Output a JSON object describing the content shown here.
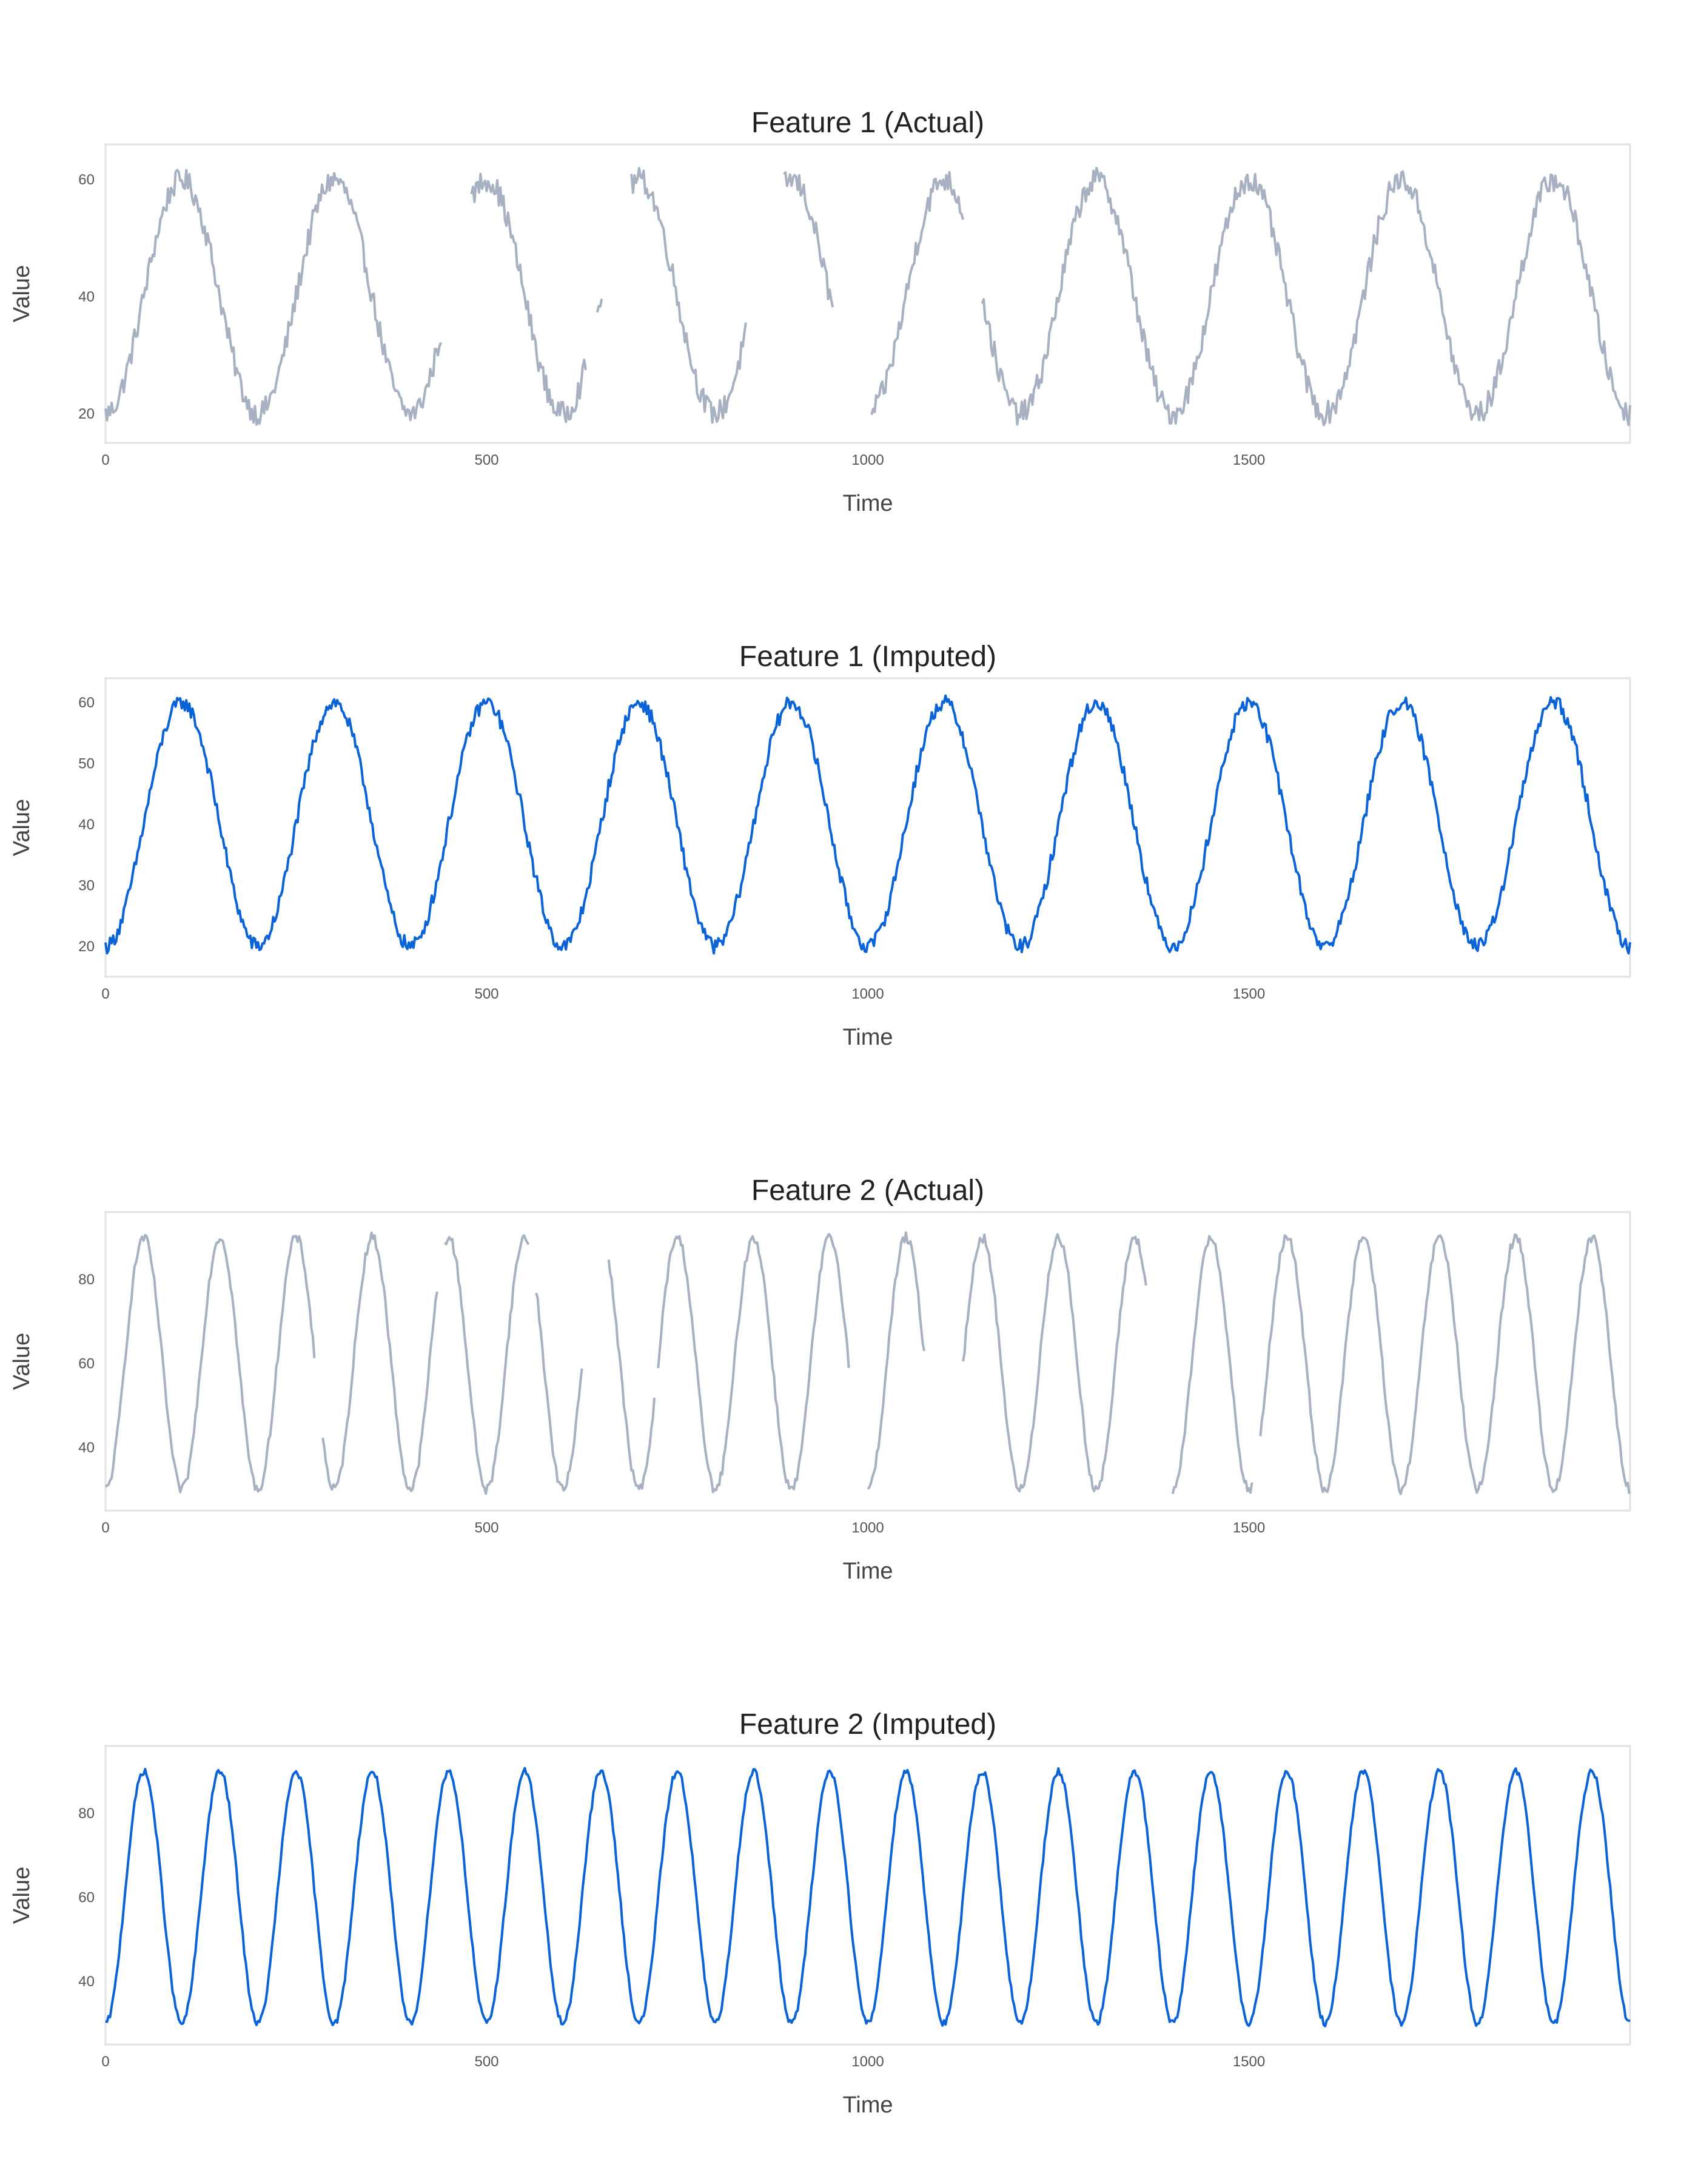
{
  "colors": {
    "actual": "#a7b1c2",
    "imputed": "#0b63d8",
    "frame": "#e2e2e2",
    "text": "#222222"
  },
  "chart_data": [
    {
      "type": "line",
      "title": "Feature 1 (Actual)",
      "xlabel": "Time",
      "ylabel": "Value",
      "xlim": [
        0,
        2000
      ],
      "ylim": [
        15,
        66
      ],
      "xticks": [
        0,
        500,
        1000,
        1500
      ],
      "yticks": [
        20,
        40,
        60
      ],
      "grid": false,
      "series": [
        {
          "color": "#a7b1c2",
          "wave": {
            "min": 20,
            "max": 60,
            "period": 200,
            "noise": 2.0
          },
          "segments": [
            [
              0,
              440
            ],
            [
              480,
              630
            ],
            [
              645,
              652
            ],
            [
              690,
              840
            ],
            [
              890,
              955
            ],
            [
              1005,
              1125
            ],
            [
              1150,
              2000
            ]
          ]
        }
      ]
    },
    {
      "type": "line",
      "title": "Feature 1 (Imputed)",
      "xlabel": "Time",
      "ylabel": "Value",
      "xlim": [
        0,
        2000
      ],
      "ylim": [
        15,
        64
      ],
      "xticks": [
        0,
        500,
        1000,
        1500
      ],
      "yticks": [
        20,
        30,
        40,
        50,
        60
      ],
      "grid": false,
      "series": [
        {
          "color": "#0b63d8",
          "wave": {
            "min": 20,
            "max": 60,
            "period": 200,
            "noise": 1.2
          },
          "segments": [
            [
              0,
              2000
            ]
          ]
        }
      ]
    },
    {
      "type": "line",
      "title": "Feature 2 (Actual)",
      "xlabel": "Time",
      "ylabel": "Value",
      "xlim": [
        0,
        2000
      ],
      "ylim": [
        25,
        96
      ],
      "xticks": [
        0,
        500,
        1000,
        1500
      ],
      "yticks": [
        40,
        60,
        80
      ],
      "grid": false,
      "series": [
        {
          "color": "#a7b1c2",
          "wave": {
            "min": 30,
            "max": 90,
            "period": 100,
            "noise": 1.2
          },
          "segments": [
            [
              0,
              275
            ],
            [
              285,
              435
            ],
            [
              445,
              555
            ],
            [
              565,
              625
            ],
            [
              660,
              720
            ],
            [
              725,
              975
            ],
            [
              1000,
              1075
            ],
            [
              1125,
              1365
            ],
            [
              1400,
              1505
            ],
            [
              1515,
              2000
            ]
          ]
        }
      ]
    },
    {
      "type": "line",
      "title": "Feature 2 (Imputed)",
      "xlabel": "Time",
      "ylabel": "Value",
      "xlim": [
        0,
        2000
      ],
      "ylim": [
        25,
        96
      ],
      "xticks": [
        0,
        500,
        1000,
        1500
      ],
      "yticks": [
        40,
        60,
        80
      ],
      "grid": false,
      "series": [
        {
          "color": "#0b63d8",
          "wave": {
            "min": 30,
            "max": 90,
            "period": 100,
            "noise": 0.8
          },
          "segments": [
            [
              0,
              2000
            ]
          ]
        }
      ]
    }
  ]
}
